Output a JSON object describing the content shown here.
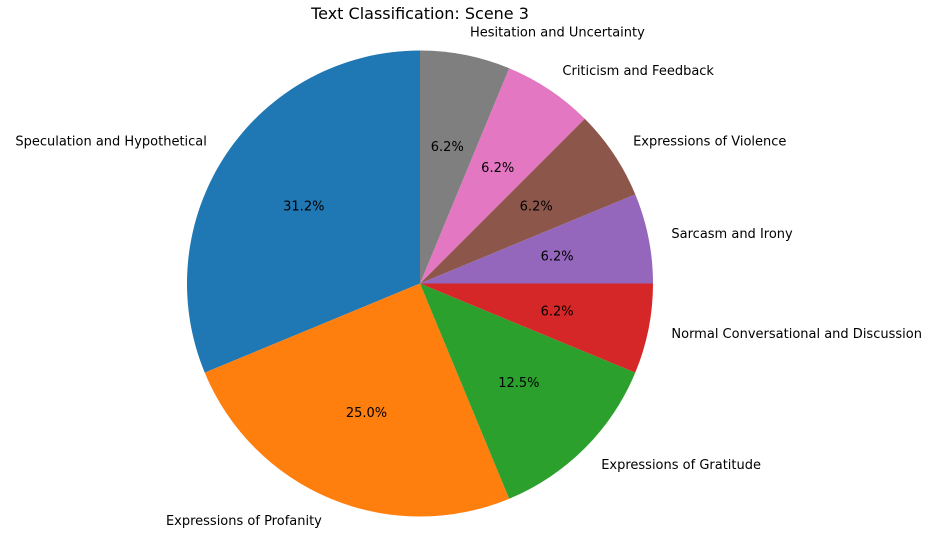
{
  "chart_data": {
    "type": "pie",
    "title": "Text Classification: Scene 3",
    "start_angle_deg": 90,
    "direction": "counterclockwise",
    "slices": [
      {
        "label": "Speculation and Hypothetical",
        "value": 31.25,
        "pct_text": "31.2%",
        "color": "#1f77b4"
      },
      {
        "label": "Expressions of Profanity",
        "value": 25.0,
        "pct_text": "25.0%",
        "color": "#ff7f0e"
      },
      {
        "label": "Expressions of Gratitude",
        "value": 12.5,
        "pct_text": "12.5%",
        "color": "#2ca02c"
      },
      {
        "label": "Normal Conversational and Discussion",
        "value": 6.25,
        "pct_text": "6.2%",
        "color": "#d62728"
      },
      {
        "label": "Sarcasm and Irony",
        "value": 6.25,
        "pct_text": "6.2%",
        "color": "#9467bd"
      },
      {
        "label": "Expressions of Violence",
        "value": 6.25,
        "pct_text": "6.2%",
        "color": "#8c564b"
      },
      {
        "label": "Criticism and Feedback",
        "value": 6.25,
        "pct_text": "6.2%",
        "color": "#e377c2"
      },
      {
        "label": "Hesitation and Uncertainty",
        "value": 6.25,
        "pct_text": "6.2%",
        "color": "#7f7f7f"
      }
    ]
  }
}
